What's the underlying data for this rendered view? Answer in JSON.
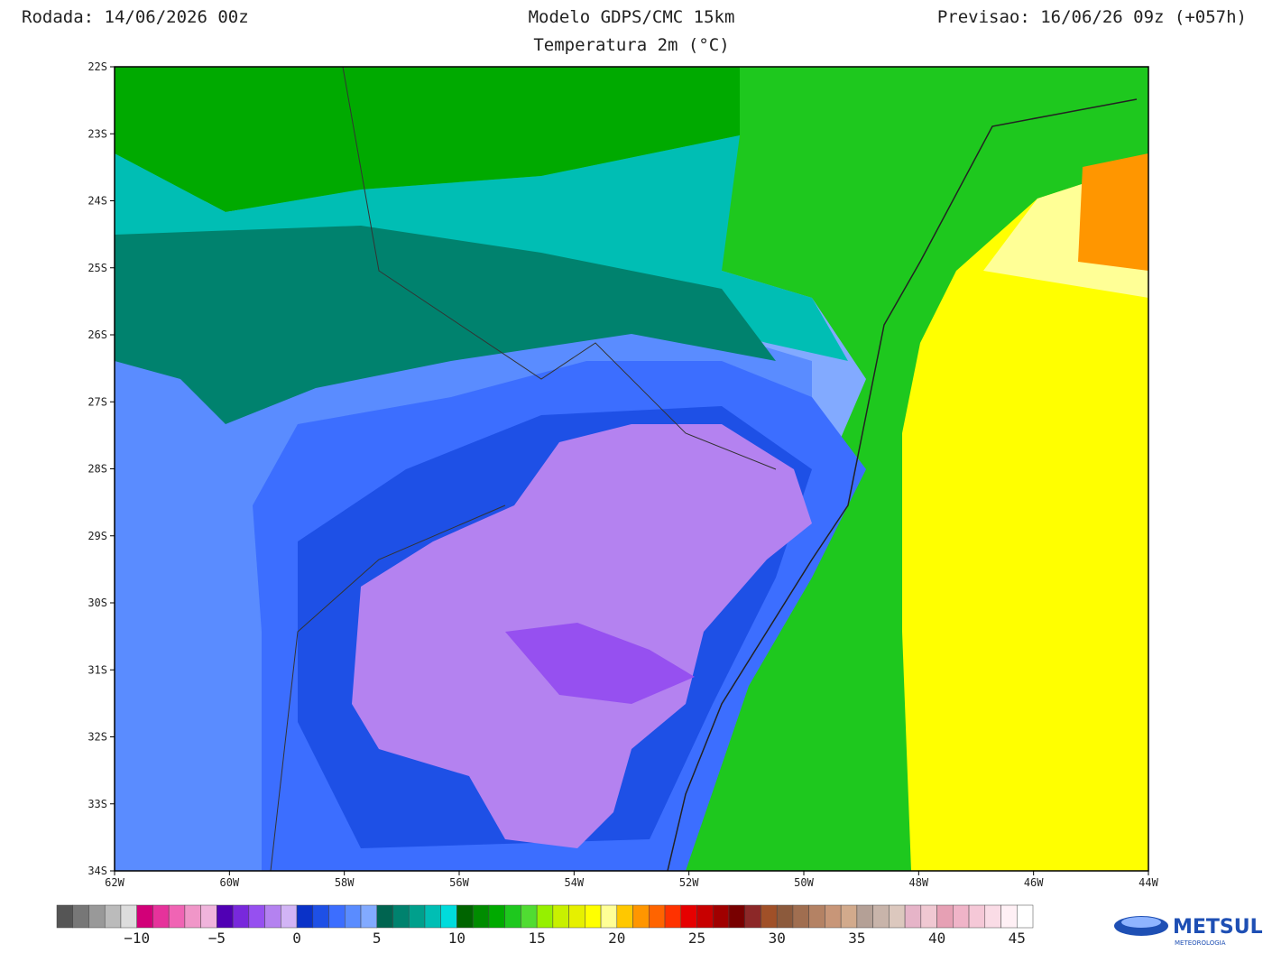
{
  "header": {
    "run": "Rodada: 14/06/2026 00z",
    "model": "Modelo GDPS/CMC 15km",
    "forecast": "Previsao: 16/06/26 09z (+057h)",
    "subtitle": "Temperatura 2m (°C)"
  },
  "map": {
    "lat_labels": [
      "22S",
      "23S",
      "24S",
      "25S",
      "26S",
      "27S",
      "28S",
      "29S",
      "30S",
      "31S",
      "32S",
      "33S",
      "34S"
    ],
    "lon_labels": [
      "62W",
      "60W",
      "58W",
      "56W",
      "54W",
      "52W",
      "50W",
      "48W",
      "46W",
      "44W"
    ]
  },
  "colorbar": {
    "labels": [
      "−10",
      "−5",
      "0",
      "5",
      "10",
      "15",
      "20",
      "25",
      "30",
      "35",
      "40",
      "45"
    ],
    "colors": [
      "#555555",
      "#777777",
      "#999999",
      "#bbbbbb",
      "#dddddd",
      "#d20078",
      "#e6329b",
      "#f064b4",
      "#f096c8",
      "#f0b4dc",
      "#5000b4",
      "#7828dc",
      "#9650f0",
      "#b482f0",
      "#d2b4f5",
      "#0a32c8",
      "#1e50e6",
      "#3c6eff",
      "#5a8cff",
      "#82aaff",
      "#006450",
      "#00826e",
      "#00a08c",
      "#00beb4",
      "#00dcdc",
      "#006400",
      "#008c00",
      "#00aa00",
      "#1ec81e",
      "#50dc32",
      "#96f000",
      "#c8f000",
      "#e6f000",
      "#ffff00",
      "#ffff96",
      "#ffc800",
      "#ff9600",
      "#ff6400",
      "#ff3200",
      "#e60000",
      "#c80000",
      "#a00000",
      "#780000",
      "#8c2828",
      "#a05028",
      "#8c5a3c",
      "#a06e50",
      "#b48264",
      "#c89678",
      "#d2aa8c",
      "#b4a096",
      "#c8b4aa",
      "#dcc8be",
      "#e6b4c8",
      "#f0c8d2",
      "#e6a0b4",
      "#f0b4c8",
      "#f5c8d7",
      "#fadce6",
      "#fff0f5",
      "#ffffff"
    ]
  },
  "logo": {
    "name": "METSUL",
    "tagline": "METEOROLOGIA"
  }
}
